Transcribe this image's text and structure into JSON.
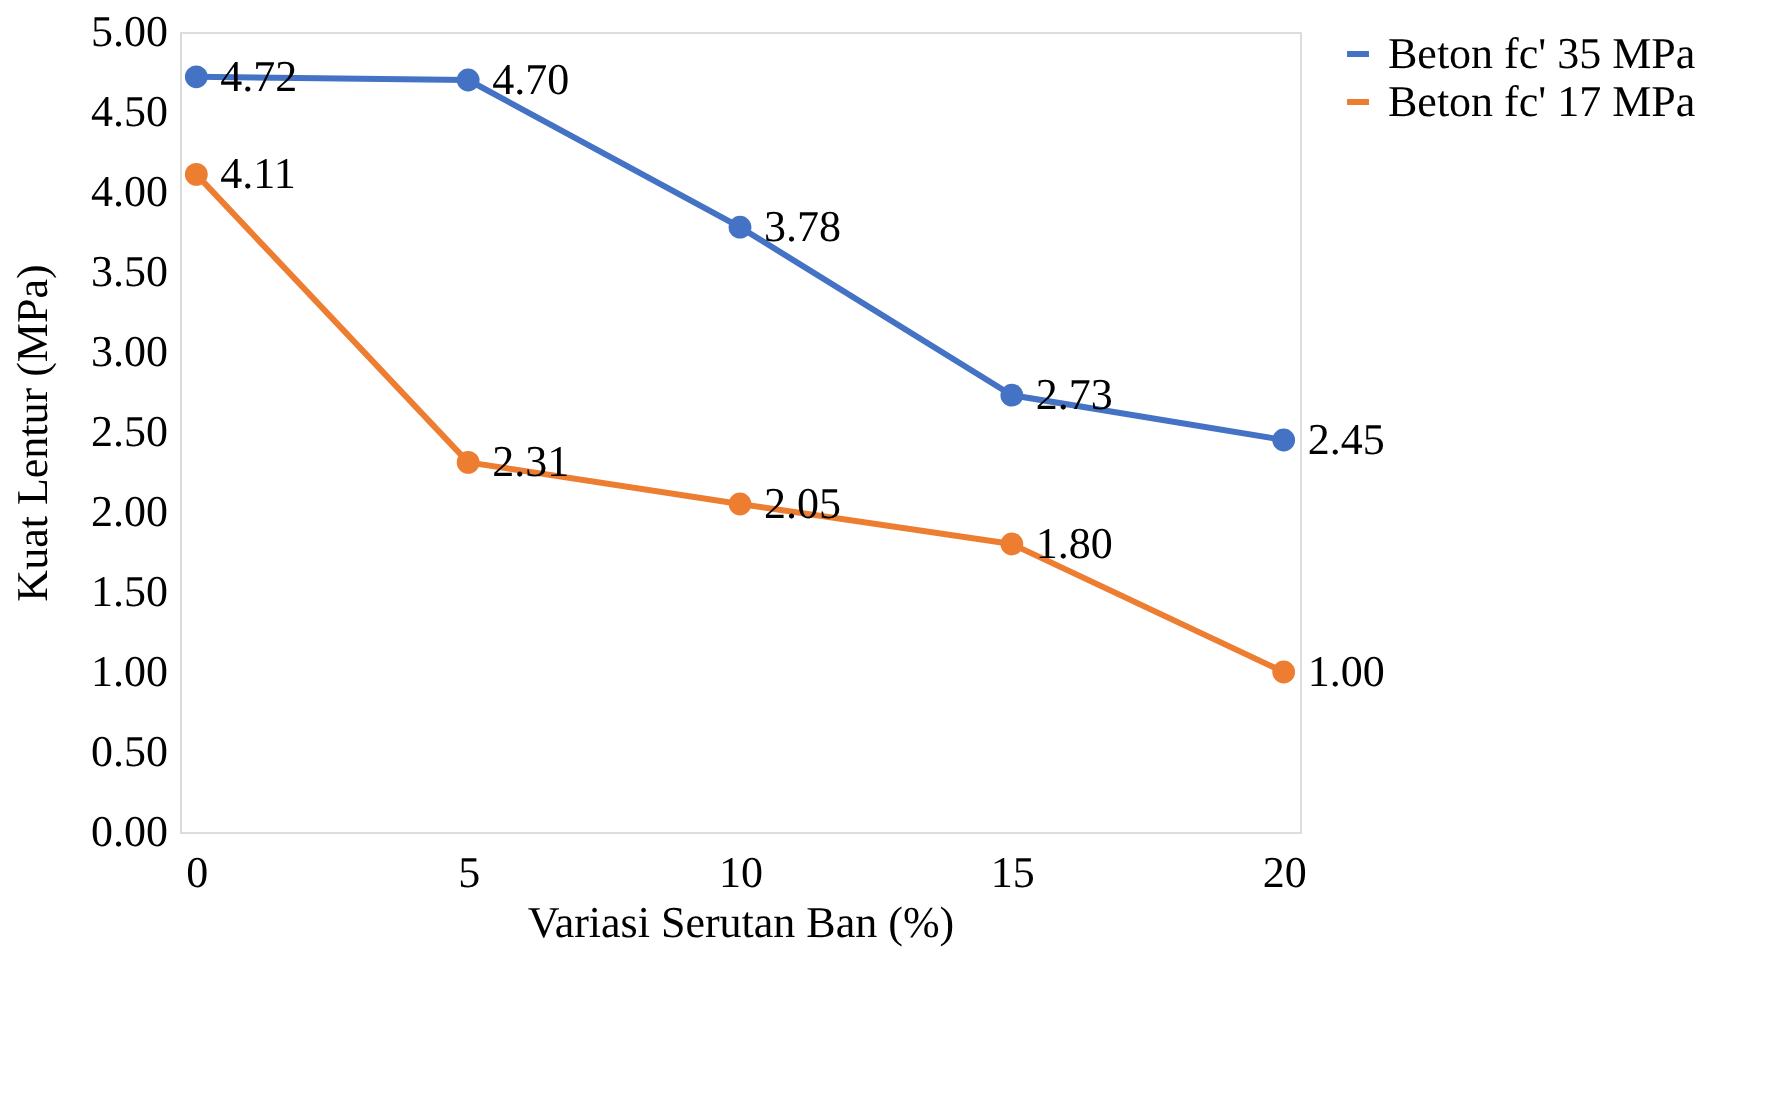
{
  "chart_data": {
    "type": "line",
    "xlabel": "Variasi Serutan Ban (%)",
    "ylabel": "Kuat Lentur (MPa)",
    "categories": [
      "0",
      "5",
      "10",
      "15",
      "20"
    ],
    "series": [
      {
        "name": "Beton fc' 35 MPa",
        "color": "#4472c4",
        "values": [
          4.72,
          4.7,
          3.78,
          2.73,
          2.45
        ],
        "value_labels": [
          "4.72",
          "4.70",
          "3.78",
          "2.73",
          "2.45"
        ]
      },
      {
        "name": "Beton fc' 17 MPa",
        "color": "#ed7d31",
        "values": [
          4.11,
          2.31,
          2.05,
          1.8,
          1.0
        ],
        "value_labels": [
          "4.11",
          "2.31",
          "2.05",
          "1.80",
          "1.00"
        ]
      }
    ],
    "ylim": [
      0,
      5
    ],
    "yticks": [
      {
        "value": 0,
        "label": "0.00"
      },
      {
        "value": 0.5,
        "label": "0.50"
      },
      {
        "value": 1,
        "label": "1.00"
      },
      {
        "value": 1.5,
        "label": "1.50"
      },
      {
        "value": 2,
        "label": "2.00"
      },
      {
        "value": 2.5,
        "label": "2.50"
      },
      {
        "value": 3,
        "label": "3.00"
      },
      {
        "value": 3.5,
        "label": "3.50"
      },
      {
        "value": 4,
        "label": "4.00"
      },
      {
        "value": 4.5,
        "label": "4.50"
      },
      {
        "value": 5,
        "label": "5.00"
      }
    ],
    "grid": false,
    "legend": "right",
    "marker": "circle",
    "line_style": "solid"
  }
}
